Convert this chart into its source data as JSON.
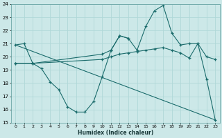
{
  "xlabel": "Humidex (Indice chaleur)",
  "xlim": [
    -0.5,
    23.5
  ],
  "ylim": [
    15,
    24
  ],
  "yticks": [
    15,
    16,
    17,
    18,
    19,
    20,
    21,
    22,
    23,
    24
  ],
  "xticks": [
    0,
    1,
    2,
    3,
    4,
    5,
    6,
    7,
    8,
    9,
    10,
    11,
    12,
    13,
    14,
    15,
    16,
    17,
    18,
    19,
    20,
    21,
    22,
    23
  ],
  "bg_color": "#cce8e8",
  "line_color": "#1a6b6b",
  "grid_color": "#b0d8d8",
  "line1": {
    "x": [
      0,
      1,
      2,
      3,
      4,
      5,
      6,
      7,
      8,
      9,
      10,
      11,
      12,
      13
    ],
    "y": [
      20.9,
      21.0,
      19.5,
      19.1,
      18.1,
      17.5,
      16.2,
      15.8,
      15.8,
      16.6,
      18.5,
      20.5,
      21.6,
      21.4
    ]
  },
  "line2": {
    "x": [
      0,
      2,
      10,
      11,
      12,
      13,
      14,
      15,
      16,
      17,
      18,
      19,
      20,
      21,
      22,
      23
    ],
    "y": [
      19.5,
      19.5,
      20.2,
      20.5,
      21.6,
      21.4,
      20.5,
      22.3,
      23.5,
      23.9,
      21.8,
      20.9,
      21.0,
      21.0,
      18.3,
      15.2
    ]
  },
  "line3": {
    "x": [
      0,
      2,
      10,
      11,
      12,
      13,
      14,
      15,
      16,
      17,
      18,
      19,
      20,
      21,
      22,
      23
    ],
    "y": [
      19.5,
      19.5,
      19.8,
      20.0,
      20.2,
      20.3,
      20.4,
      20.5,
      20.6,
      20.7,
      20.5,
      20.3,
      19.9,
      21.0,
      20.0,
      19.8
    ]
  },
  "line4": {
    "x": [
      0,
      23
    ],
    "y": [
      20.9,
      15.2
    ]
  }
}
